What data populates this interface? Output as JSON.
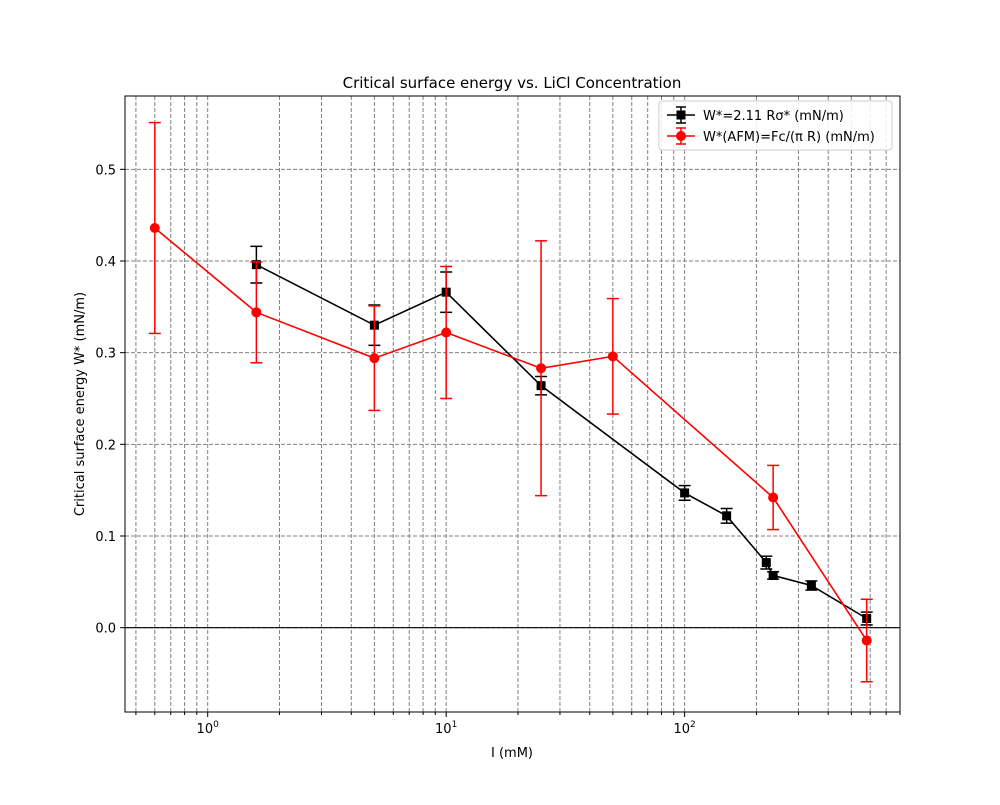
{
  "chart_data": {
    "type": "scatter",
    "title": "Critical surface energy vs. LiCl Concentration",
    "xlabel": "I (mM)",
    "ylabel": "Critical surface energy W* (mN/m)",
    "xscale": "log",
    "xlim": [
      0.45,
      800
    ],
    "ylim": [
      -0.092,
      0.58
    ],
    "x_ticks": [
      {
        "value": 1,
        "base": "10",
        "exp": "0"
      },
      {
        "value": 10,
        "base": "10",
        "exp": "1"
      },
      {
        "value": 100,
        "base": "10",
        "exp": "2"
      }
    ],
    "y_ticks": [
      {
        "value": 0.0,
        "label": "0.0"
      },
      {
        "value": 0.1,
        "label": "0.1"
      },
      {
        "value": 0.2,
        "label": "0.2"
      },
      {
        "value": 0.3,
        "label": "0.3"
      },
      {
        "value": 0.4,
        "label": "0.4"
      },
      {
        "value": 0.5,
        "label": "0.5"
      }
    ],
    "grid": true,
    "zero_line": true,
    "legend_position": "top-right",
    "series": [
      {
        "name": "W*=2.11 Rσ* (mN/m)",
        "color": "#000000",
        "marker": "square",
        "x": [
          1.6,
          5,
          10,
          25,
          100,
          150,
          220,
          235,
          340,
          580
        ],
        "y": [
          0.396,
          0.33,
          0.366,
          0.264,
          0.147,
          0.122,
          0.071,
          0.057,
          0.046,
          0.01
        ],
        "yerr": [
          0.02,
          0.022,
          0.022,
          0.01,
          0.008,
          0.008,
          0.007,
          0.004,
          0.005,
          0.007
        ]
      },
      {
        "name": "W*(AFM)=Fc/(π R) (mN/m)",
        "color": "#ff0000",
        "marker": "circle",
        "x": [
          0.6,
          1.6,
          5,
          10,
          25,
          50,
          235,
          580
        ],
        "y": [
          0.436,
          0.344,
          0.294,
          0.322,
          0.283,
          0.296,
          0.142,
          -0.014
        ],
        "yerr": [
          0.115,
          0.055,
          0.057,
          0.072,
          0.139,
          0.063,
          0.035,
          0.045
        ]
      }
    ]
  }
}
